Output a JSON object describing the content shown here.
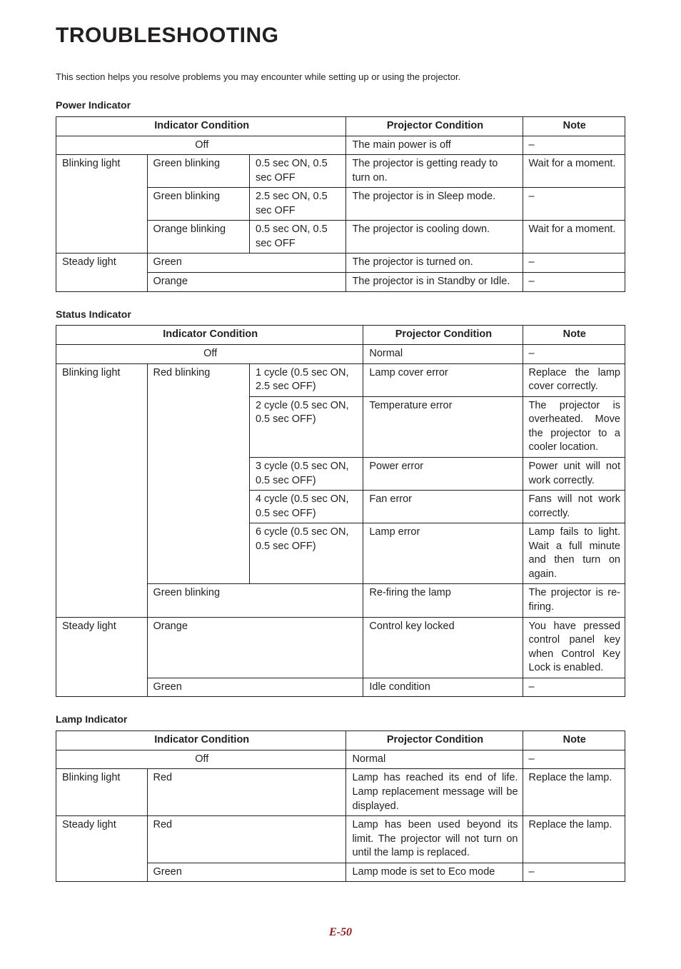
{
  "title": "TROUBLESHOOTING",
  "intro": "This section helps you resolve problems you may encounter while setting up or using the projector.",
  "page_number": "E-50",
  "colors": {
    "text": "#231f20",
    "border": "#231f20",
    "page_num": "#8a1a1a",
    "bg": "#ffffff"
  },
  "headers": {
    "indicator_condition": "Indicator Condition",
    "projector_condition": "Projector Condition",
    "note": "Note"
  },
  "labels": {
    "off": "Off",
    "blinking_light": "Blinking light",
    "steady_light": "Steady light"
  },
  "power": {
    "section": "Power Indicator",
    "rows": {
      "off": {
        "proj": "The main power is off",
        "note": "–"
      },
      "b1": {
        "col": "Green blinking",
        "pat": "0.5 sec ON, 0.5 sec OFF",
        "proj": "The projector is getting ready to turn on.",
        "note": "Wait for a moment."
      },
      "b2": {
        "col": "Green blinking",
        "pat": "2.5 sec ON, 0.5 sec OFF",
        "proj": "The projector is in Sleep mode.",
        "note": "–"
      },
      "b3": {
        "col": "Orange blinking",
        "pat": "0.5 sec ON, 0.5 sec OFF",
        "proj": "The projector is cooling down.",
        "note": "Wait for a moment."
      },
      "s1": {
        "col": "Green",
        "proj": "The projector is turned on.",
        "note": "–"
      },
      "s2": {
        "col": "Orange",
        "proj": "The projector is in Standby or Idle.",
        "note": "–"
      }
    }
  },
  "status": {
    "section": "Status Indicator",
    "rows": {
      "off": {
        "proj": "Normal",
        "note": "–"
      },
      "b1": {
        "col": "Red blinking",
        "pat": "1 cycle (0.5 sec ON, 2.5 sec OFF)",
        "proj": "Lamp cover error",
        "note": "Replace the lamp cover correctly."
      },
      "b2": {
        "pat": "2 cycle (0.5 sec ON, 0.5 sec OFF)",
        "proj": "Temperature error",
        "note": "The projector is overheated. Move the projector to a cooler location."
      },
      "b3": {
        "pat": "3 cycle (0.5 sec ON, 0.5 sec OFF)",
        "proj": "Power error",
        "note": "Power unit will not work correctly."
      },
      "b4": {
        "pat": "4 cycle (0.5 sec ON, 0.5 sec OFF)",
        "proj": "Fan error",
        "note": "Fans will not work correctly."
      },
      "b5": {
        "pat": "6 cycle (0.5 sec ON, 0.5 sec OFF)",
        "proj": "Lamp error",
        "note": "Lamp fails to light. Wait a full minute and then turn on again."
      },
      "b6": {
        "col": "Green blinking",
        "proj": "Re-firing the lamp",
        "note": "The projector is re-firing."
      },
      "s1": {
        "col": "Orange",
        "proj": "Control key locked",
        "note": "You have pressed control panel key when Control Key Lock is enabled."
      },
      "s2": {
        "col": "Green",
        "proj": "Idle condition",
        "note": "–"
      }
    }
  },
  "lamp": {
    "section": "Lamp Indicator",
    "rows": {
      "off": {
        "proj": "Normal",
        "note": "–"
      },
      "b1": {
        "col": "Red",
        "proj": "Lamp has reached its end of life. Lamp replacement message will be displayed.",
        "note": "Replace the lamp."
      },
      "s1": {
        "col": "Red",
        "proj": "Lamp has been used beyond its limit. The projector will not turn on until the lamp is replaced.",
        "note": "Replace the lamp."
      },
      "s2": {
        "col": "Green",
        "proj": "Lamp mode is set to Eco mode",
        "note": "–"
      }
    }
  }
}
